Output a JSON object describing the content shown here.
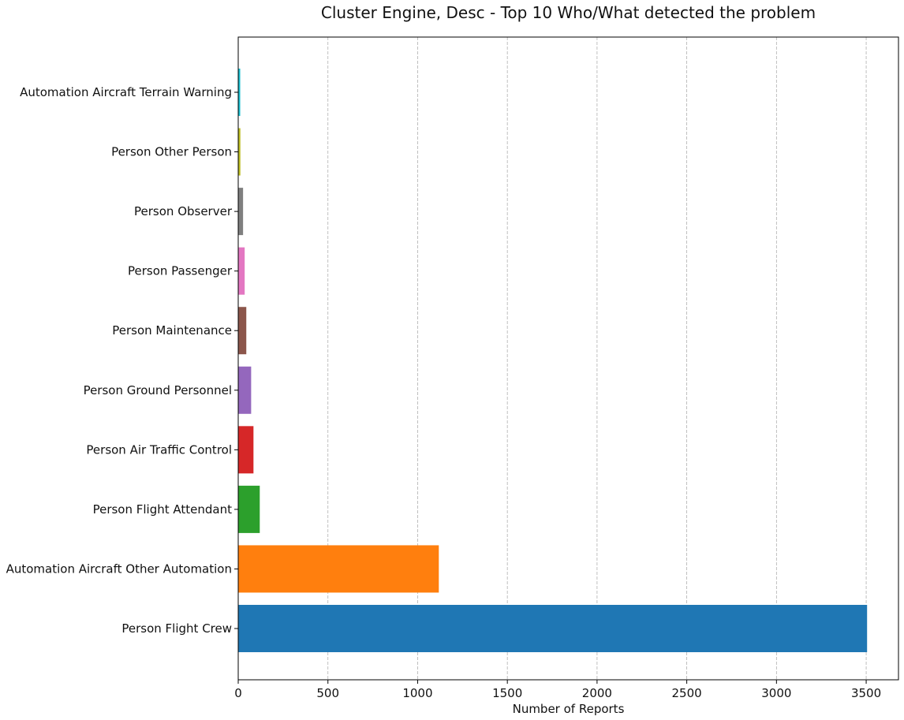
{
  "chart_data": {
    "type": "bar",
    "orientation": "horizontal",
    "title": "Cluster Engine, Desc - Top 10 Who/What detected the problem",
    "xlabel": "Number of Reports",
    "ylabel": "",
    "xlim": [
      0,
      3680
    ],
    "x_ticks": [
      0,
      500,
      1000,
      1500,
      2000,
      2500,
      3000,
      3500
    ],
    "grid": "x-dashed",
    "legend": "none",
    "categories": [
      "Person Flight Crew",
      "Automation Aircraft Other Automation",
      "Person Flight Attendant",
      "Person Air Traffic Control",
      "Person Ground Personnel",
      "Person Maintenance",
      "Person Passenger",
      "Person Observer",
      "Person Other Person",
      "Automation Aircraft Terrain Warning"
    ],
    "values": [
      3505,
      1118,
      120,
      85,
      72,
      45,
      36,
      27,
      12,
      11
    ],
    "colors": [
      "#1f77b4",
      "#ff7f0e",
      "#2ca02c",
      "#d62728",
      "#9467bd",
      "#8c564b",
      "#e377c2",
      "#7f7f7f",
      "#bcbd22",
      "#17becf"
    ]
  }
}
